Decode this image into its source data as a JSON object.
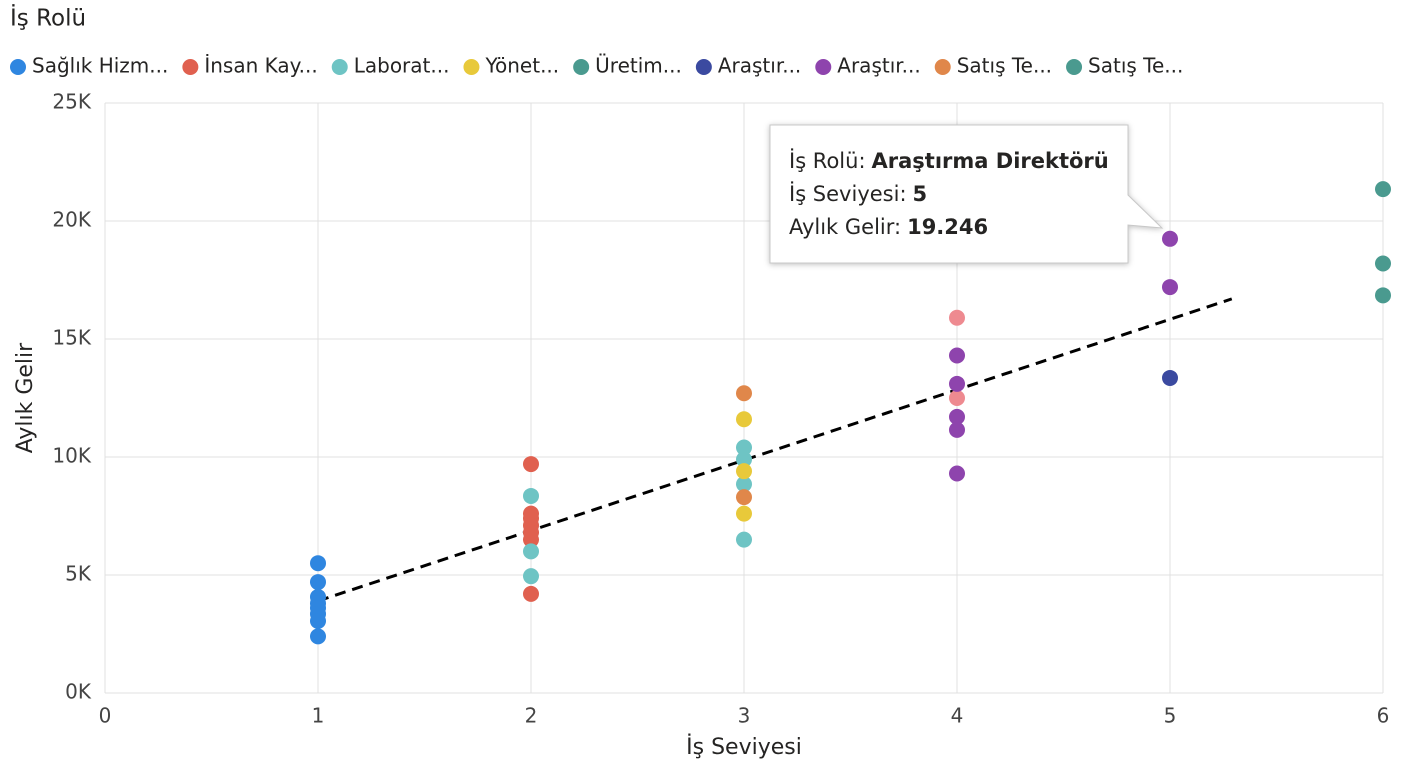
{
  "chart_data": {
    "type": "scatter",
    "legend_title": "İş Rolü",
    "x_label": "İş Seviyesi",
    "y_label": "Aylık Gelir",
    "xlim": [
      0,
      6
    ],
    "xticks": [
      0,
      1,
      2,
      3,
      4,
      5,
      6
    ],
    "ylim": [
      0,
      25000
    ],
    "yticks": [
      {
        "value": 0,
        "label": "0K"
      },
      {
        "value": 5000,
        "label": "5K"
      },
      {
        "value": 10000,
        "label": "10K"
      },
      {
        "value": 15000,
        "label": "15K"
      },
      {
        "value": 20000,
        "label": "20K"
      },
      {
        "value": 25000,
        "label": "25K"
      }
    ],
    "grid": true,
    "series": [
      {
        "name": "Sağlık Hizm...",
        "color": "#2f86e0",
        "x": [
          1,
          1,
          1,
          1,
          1,
          1,
          1,
          1
        ],
        "values": [
          5500,
          4700,
          4070,
          3800,
          3600,
          3350,
          3050,
          2400
        ]
      },
      {
        "name": "İnsan Kay...",
        "color": "#e0604f",
        "x": [
          2,
          2,
          2,
          2,
          2,
          2,
          2,
          4,
          4
        ],
        "values": [
          9700,
          7600,
          7400,
          7100,
          6800,
          6500,
          4200,
          15900,
          12500
        ],
        "colors": [
          "#e0604f",
          "#e0604f",
          "#e0604f",
          "#e0604f",
          "#e0604f",
          "#e0604f",
          "#e0604f",
          "#ee8a90",
          "#ee8a90"
        ]
      },
      {
        "name": "Laborat...",
        "color": "#6ec4c4",
        "x": [
          2,
          2,
          2,
          3,
          3,
          3,
          3
        ],
        "values": [
          8350,
          6000,
          4950,
          10400,
          9900,
          8850,
          6500
        ]
      },
      {
        "name": "Yönet...",
        "color": "#e8c93a",
        "x": [
          3,
          3,
          3
        ],
        "values": [
          11600,
          9400,
          7600
        ]
      },
      {
        "name": "Üretim...",
        "color": "#4a9a8f",
        "x": [
          6,
          6
        ],
        "values": [
          18200,
          16850
        ]
      },
      {
        "name": "Araştır...",
        "color": "#3b4aa0",
        "x": [
          5
        ],
        "values": [
          13350
        ]
      },
      {
        "name": "Araştır...",
        "color": "#8e44ad",
        "x": [
          4,
          4,
          4,
          4,
          4,
          5,
          5
        ],
        "values": [
          14300,
          13100,
          11700,
          11150,
          9300,
          19246,
          17200
        ]
      },
      {
        "name": "Satış Te...",
        "color": "#e0874a",
        "x": [
          3,
          3
        ],
        "values": [
          12700,
          8300
        ]
      },
      {
        "name": "Satış Te...",
        "color": "#4a9a8f",
        "x": [
          6
        ],
        "values": [
          21350
        ]
      }
    ],
    "trendline": {
      "x": [
        1,
        5.29
      ],
      "y": [
        3900,
        16700
      ]
    },
    "tooltip": {
      "lines": [
        {
          "label": "İş Rolü:",
          "value": "Araştırma Direktörü"
        },
        {
          "label": "İş Seviyesi:",
          "value": "5"
        },
        {
          "label": "Aylık Gelir:",
          "value": "19.246"
        }
      ]
    }
  }
}
